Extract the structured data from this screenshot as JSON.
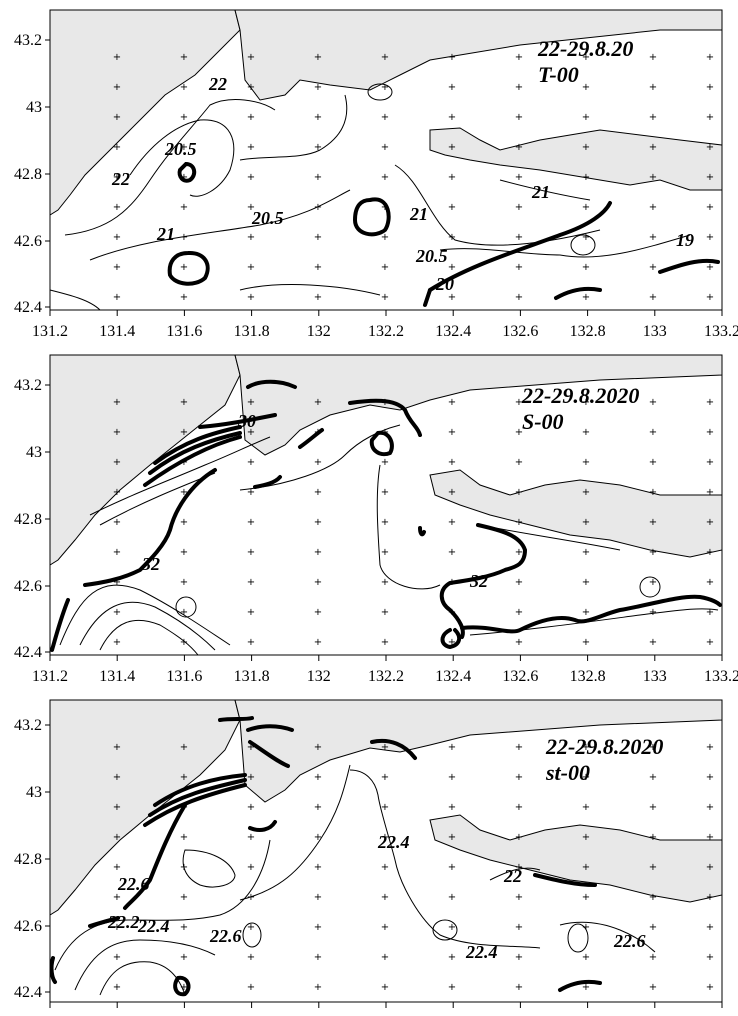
{
  "panels": [
    {
      "title_line1": "22-29.8.20",
      "title_line2": "T-00",
      "x_ticks": [
        "131.2",
        "131.4",
        "131.6",
        "131.8",
        "132",
        "132.2",
        "132.4",
        "132.6",
        "132.8",
        "133",
        "133.2"
      ],
      "y_ticks": [
        "43.2",
        "43",
        "42.8",
        "42.6",
        "42.4"
      ],
      "contour_labels": [
        "22",
        "20.5",
        "22",
        "21",
        "20.5",
        "21",
        "20.5",
        "20",
        "21",
        "19"
      ]
    },
    {
      "title_line1": "22-29.8.2020",
      "title_line2": "S-00",
      "x_ticks": [
        "131.2",
        "131.4",
        "131.6",
        "131.8",
        "132",
        "132.2",
        "132.4",
        "132.6",
        "132.8",
        "133",
        "133.2"
      ],
      "y_ticks": [
        "43.2",
        "43",
        "42.8",
        "42.6",
        "42.4"
      ],
      "contour_labels": [
        "30",
        "32",
        "32"
      ]
    },
    {
      "title_line1": "22-29.8.2020",
      "title_line2": "st-00",
      "x_ticks": [],
      "y_ticks": [
        "43.2",
        "43",
        "42.8",
        "42.6",
        "42.4"
      ],
      "contour_labels": [
        "22.6",
        "22.2",
        "22.4",
        "22.6",
        "22.4",
        "22.4",
        "22",
        "22.6"
      ]
    }
  ],
  "colors": {
    "land": "#e8e8e8",
    "sea": "#ffffff",
    "contour": "#000000"
  }
}
